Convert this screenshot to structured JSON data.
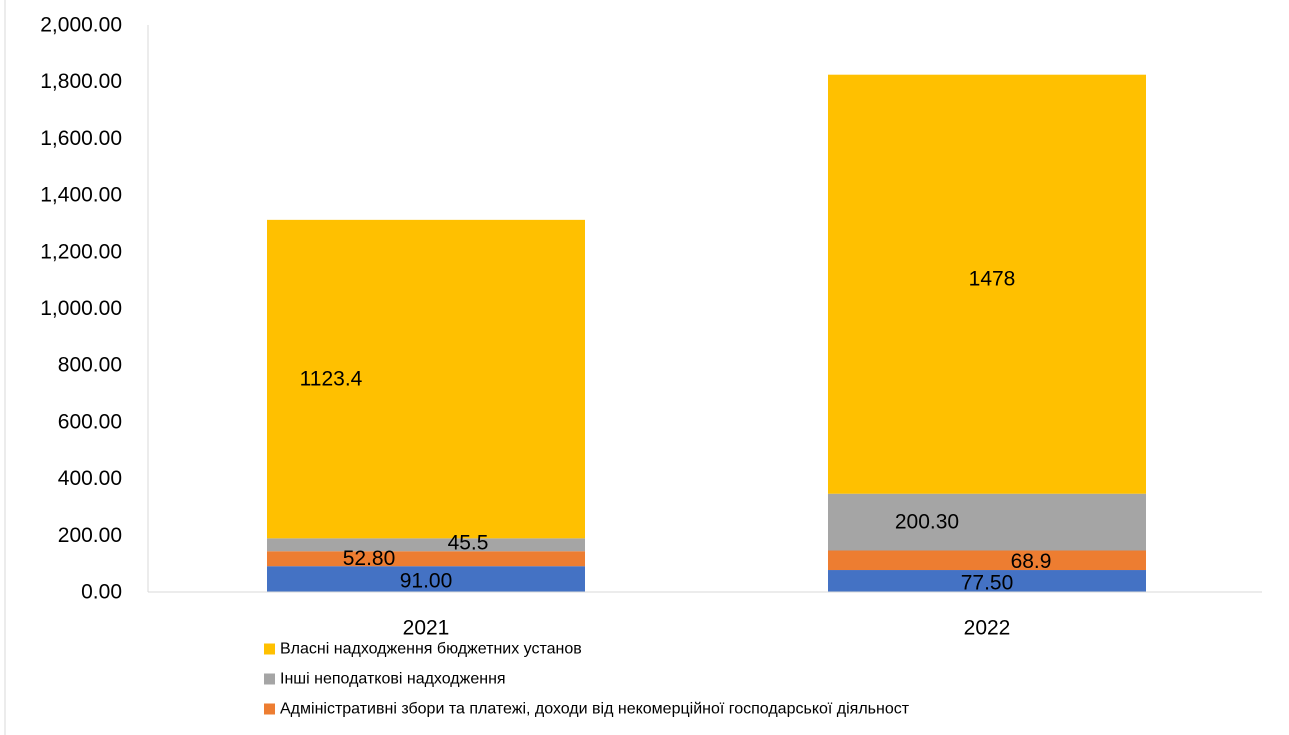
{
  "chart_data": {
    "type": "bar",
    "stacked": true,
    "categories": [
      "2021",
      "2022"
    ],
    "ylim": [
      0,
      2000
    ],
    "y_ticks": [
      "0.00",
      "200.00",
      "400.00",
      "600.00",
      "800.00",
      "1,000.00",
      "1,200.00",
      "1,400.00",
      "1,600.00",
      "1,800.00",
      "2,000.00"
    ],
    "y_tick_values": [
      0,
      200,
      400,
      600,
      800,
      1000,
      1200,
      1400,
      1600,
      1800,
      2000
    ],
    "grid": false,
    "legend_position": "bottom-left",
    "series": [
      {
        "key": "s_blue",
        "color": "#4472C4",
        "values": [
          91.0,
          77.5
        ],
        "labels": [
          "91.00",
          "77.50"
        ]
      },
      {
        "key": "s_orange",
        "name": "Адміністративні збори та платежі, доходи від некомерційної господарської діяльност",
        "color": "#ED7D31",
        "values": [
          52.8,
          68.9
        ],
        "labels": [
          "52.80",
          "68.9"
        ]
      },
      {
        "key": "s_gray",
        "name": "Інші неподаткові надходження",
        "color": "#A5A5A5",
        "values": [
          45.5,
          200.3
        ],
        "labels": [
          "45.5",
          "200.30"
        ]
      },
      {
        "key": "s_yellow",
        "name": "Власні надходження бюджетних установ",
        "color": "#FFC000",
        "values": [
          1123.4,
          1478
        ],
        "labels": [
          "1123.4",
          "1478"
        ]
      }
    ],
    "legend_order": [
      "s_yellow",
      "s_gray",
      "s_orange"
    ]
  }
}
